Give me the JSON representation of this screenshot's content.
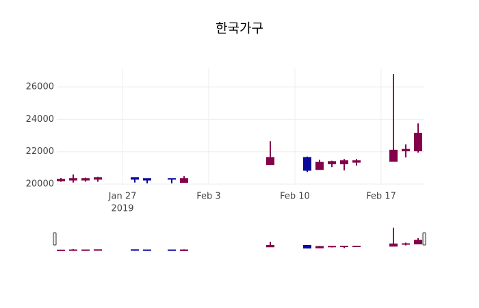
{
  "chart_data": {
    "type": "candlestick",
    "title": "한국가구",
    "x": [
      "2019-01-22",
      "2019-01-23",
      "2019-01-24",
      "2019-01-25",
      "2019-01-28",
      "2019-01-29",
      "2019-01-31",
      "2019-02-01",
      "2019-02-08",
      "2019-02-11",
      "2019-02-12",
      "2019-02-13",
      "2019-02-14",
      "2019-02-15",
      "2019-02-18",
      "2019-02-19",
      "2019-02-20"
    ],
    "open": [
      20200,
      20250,
      20250,
      20300,
      20400,
      20350,
      20350,
      20100,
      21200,
      21650,
      20900,
      21250,
      21250,
      21350,
      21400,
      22050,
      22050
    ],
    "high": [
      20380,
      20600,
      20400,
      20450,
      20400,
      20350,
      20350,
      20500,
      22650,
      21700,
      21500,
      21450,
      21550,
      21550,
      26800,
      22450,
      23750
    ],
    "low": [
      20150,
      20100,
      20150,
      20150,
      20100,
      20050,
      20050,
      20100,
      21200,
      20750,
      20900,
      21050,
      20850,
      21150,
      21400,
      21650,
      21950
    ],
    "close": [
      20300,
      20350,
      20350,
      20400,
      20300,
      20250,
      20300,
      20350,
      21650,
      20850,
      21350,
      21400,
      21450,
      21450,
      22100,
      22150,
      23150
    ],
    "increasing_color": "#85004b",
    "decreasing_color": "#0a0a9c",
    "xlim": [
      "2019-01-21T16:00",
      "2019-02-20T12:00"
    ],
    "xticks": [
      {
        "value": "2019-01-27",
        "label": "Jan 27",
        "sublabel": "2019"
      },
      {
        "value": "2019-02-03",
        "label": "Feb 3"
      },
      {
        "value": "2019-02-10",
        "label": "Feb 10"
      },
      {
        "value": "2019-02-17",
        "label": "Feb 17"
      }
    ],
    "ylim": [
      19960,
      27140
    ],
    "yticks": [
      20000,
      22000,
      24000,
      26000
    ],
    "grid": true,
    "rangeslider": true
  }
}
